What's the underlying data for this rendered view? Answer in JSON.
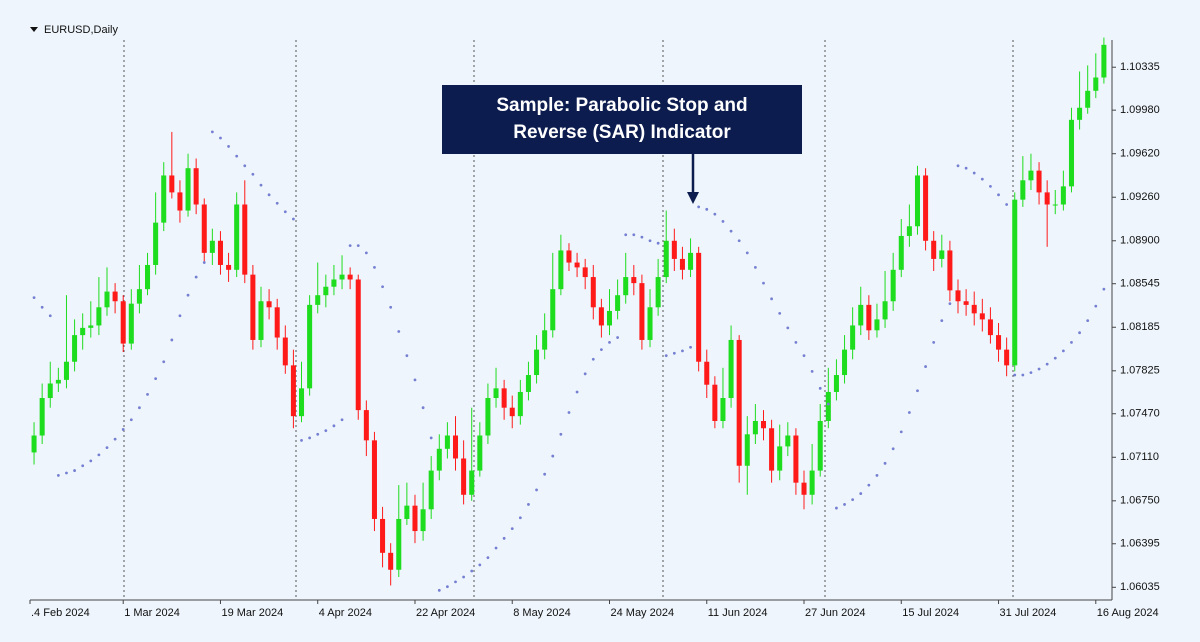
{
  "chart_data": {
    "type": "candlestick",
    "title": "EURUSD,Daily",
    "annotation": [
      "Sample: Parabolic Stop and",
      "Reverse (SAR) Indicator"
    ],
    "up_color": "#1edc1e",
    "down_color": "#ff1a1a",
    "open": [
      1.0715,
      1.0729,
      1.076,
      1.0772,
      1.0775,
      1.079,
      1.0812,
      1.0818,
      1.082,
      1.0835,
      1.0848,
      1.084,
      1.0805,
      1.0838,
      1.085,
      1.087,
      1.0905,
      1.0944,
      1.093,
      1.0915,
      1.095,
      1.092,
      1.088,
      1.089,
      1.087,
      1.0866,
      1.092,
      1.0862,
      1.0808,
      1.084,
      1.0835,
      1.081,
      1.0787,
      1.0745,
      1.0768,
      1.0837,
      1.0845,
      1.0852,
      1.0858,
      1.0862,
      1.0858,
      1.075,
      1.0725,
      1.066,
      1.0632,
      1.0618,
      1.066,
      1.0671,
      1.065,
      1.0668,
      1.07,
      1.0718,
      1.0729,
      1.071,
      1.068,
      1.07,
      1.0729,
      1.076,
      1.0768,
      1.0752,
      1.0745,
      1.0765,
      1.0779,
      1.08,
      1.0816,
      1.085,
      1.0882,
      1.0872,
      1.0868,
      1.086,
      1.0835,
      1.082,
      1.0832,
      1.0845,
      1.086,
      1.0855,
      1.0808,
      1.0835,
      1.086,
      1.089,
      1.0875,
      1.0866,
      1.088,
      1.079,
      1.0771,
      1.0741,
      1.076,
      1.0808,
      1.0704,
      1.073,
      1.0741,
      1.0735,
      1.07,
      1.072,
      1.0729,
      1.069,
      1.068,
      1.07,
      1.0741,
      1.0765,
      1.0779,
      1.08,
      1.082,
      1.0837,
      1.0816,
      1.0825,
      1.084,
      1.0866,
      1.0894,
      1.0902,
      1.0944,
      1.089,
      1.0875,
      1.0882,
      1.0849,
      1.084,
      1.0837,
      1.083,
      1.0825,
      1.0812,
      1.08,
      1.0787,
      1.0924,
      1.094,
      1.0948,
      1.093,
      1.092,
      1.092,
      1.0935,
      1.099,
      1.1,
      1.1014,
      1.1025
    ],
    "high": [
      1.074,
      1.0772,
      1.079,
      1.0785,
      1.0845,
      1.0825,
      1.083,
      1.084,
      1.086,
      1.0868,
      1.0855,
      1.0845,
      1.085,
      1.087,
      1.088,
      1.093,
      1.0955,
      1.098,
      1.094,
      1.0962,
      1.0958,
      1.0925,
      1.09,
      1.0898,
      1.088,
      1.093,
      1.094,
      1.087,
      1.0852,
      1.085,
      1.0842,
      1.082,
      1.08,
      1.079,
      1.0845,
      1.0872,
      1.0862,
      1.087,
      1.0878,
      1.0868,
      1.0862,
      1.0758,
      1.0732,
      1.067,
      1.064,
      1.0688,
      1.069,
      1.068,
      1.069,
      1.0712,
      1.073,
      1.074,
      1.0745,
      1.0725,
      1.0752,
      1.074,
      1.0772,
      1.0785,
      1.0775,
      1.0762,
      1.0775,
      1.079,
      1.0812,
      1.083,
      1.088,
      1.0895,
      1.0888,
      1.088,
      1.0875,
      1.087,
      1.0842,
      1.085,
      1.0858,
      1.088,
      1.087,
      1.0862,
      1.085,
      1.0875,
      1.0915,
      1.09,
      1.0885,
      1.0892,
      1.0885,
      1.08,
      1.0778,
      1.0785,
      1.082,
      1.0812,
      1.0745,
      1.0755,
      1.075,
      1.0742,
      1.0738,
      1.074,
      1.0735,
      1.07,
      1.0722,
      1.0755,
      1.0785,
      1.0792,
      1.0812,
      1.0835,
      1.0852,
      1.0845,
      1.0838,
      1.0865,
      1.088,
      1.0908,
      1.092,
      1.0952,
      1.095,
      1.0898,
      1.0895,
      1.089,
      1.0858,
      1.085,
      1.0848,
      1.0842,
      1.0835,
      1.0822,
      1.081,
      1.093,
      1.096,
      1.0962,
      1.0955,
      1.094,
      1.0932,
      1.0948,
      1.1,
      1.103,
      1.1035,
      1.1045,
      1.1058
    ],
    "low": [
      1.0705,
      1.0722,
      1.0752,
      1.0765,
      1.0768,
      1.0782,
      1.08,
      1.081,
      1.0812,
      1.0828,
      1.083,
      1.0798,
      1.08,
      1.083,
      1.0845,
      1.0862,
      1.0898,
      1.0925,
      1.0905,
      1.091,
      1.0912,
      1.0872,
      1.087,
      1.0862,
      1.0856,
      1.086,
      1.0855,
      1.08,
      1.0802,
      1.0825,
      1.08,
      1.078,
      1.0735,
      1.074,
      1.0762,
      1.083,
      1.0835,
      1.0845,
      1.085,
      1.085,
      1.0742,
      1.0712,
      1.065,
      1.062,
      1.0605,
      1.0612,
      1.0655,
      1.064,
      1.0642,
      1.066,
      1.0692,
      1.071,
      1.07,
      1.0672,
      1.0675,
      1.0695,
      1.0722,
      1.0752,
      1.0742,
      1.0735,
      1.0738,
      1.0758,
      1.0772,
      1.0792,
      1.081,
      1.0845,
      1.0865,
      1.086,
      1.085,
      1.0825,
      1.081,
      1.0812,
      1.0825,
      1.0838,
      1.0845,
      1.08,
      1.0802,
      1.0828,
      1.0855,
      1.0865,
      1.0858,
      1.086,
      1.0782,
      1.076,
      1.0735,
      1.0735,
      1.0752,
      1.069,
      1.068,
      1.0722,
      1.0725,
      1.069,
      1.0692,
      1.0712,
      1.068,
      1.0668,
      1.0672,
      1.0695,
      1.0735,
      1.0758,
      1.0772,
      1.0792,
      1.0812,
      1.0808,
      1.081,
      1.0818,
      1.0832,
      1.086,
      1.0885,
      1.0895,
      1.0882,
      1.0865,
      1.0868,
      1.084,
      1.083,
      1.0828,
      1.082,
      1.0815,
      1.0805,
      1.079,
      1.0778,
      1.0782,
      1.0918,
      1.0932,
      1.092,
      1.0885,
      1.0912,
      1.0915,
      1.093,
      1.0982,
      1.0995,
      1.1008,
      1.102
    ],
    "close": [
      1.0729,
      1.076,
      1.0772,
      1.0775,
      1.079,
      1.0812,
      1.0818,
      1.082,
      1.0835,
      1.0848,
      1.084,
      1.0805,
      1.0838,
      1.085,
      1.087,
      1.0905,
      1.0944,
      1.093,
      1.0915,
      1.095,
      1.092,
      1.088,
      1.089,
      1.087,
      1.0866,
      1.092,
      1.0862,
      1.0808,
      1.084,
      1.0835,
      1.081,
      1.0787,
      1.0745,
      1.0768,
      1.0837,
      1.0845,
      1.0852,
      1.0858,
      1.0862,
      1.0858,
      1.075,
      1.0725,
      1.066,
      1.0632,
      1.0618,
      1.066,
      1.0671,
      1.065,
      1.0668,
      1.07,
      1.0718,
      1.0729,
      1.071,
      1.068,
      1.07,
      1.0729,
      1.076,
      1.0768,
      1.0752,
      1.0745,
      1.0765,
      1.0779,
      1.08,
      1.0816,
      1.085,
      1.0882,
      1.0872,
      1.0868,
      1.086,
      1.0835,
      1.082,
      1.0832,
      1.0845,
      1.086,
      1.0855,
      1.0808,
      1.0835,
      1.086,
      1.089,
      1.0875,
      1.0866,
      1.088,
      1.079,
      1.0771,
      1.0741,
      1.076,
      1.0808,
      1.0704,
      1.073,
      1.0741,
      1.0735,
      1.07,
      1.072,
      1.0729,
      1.069,
      1.068,
      1.07,
      1.0741,
      1.0765,
      1.0779,
      1.08,
      1.082,
      1.0837,
      1.0816,
      1.0825,
      1.084,
      1.0866,
      1.0894,
      1.0902,
      1.0944,
      1.089,
      1.0875,
      1.0882,
      1.0849,
      1.084,
      1.0837,
      1.083,
      1.0825,
      1.0812,
      1.08,
      1.0787,
      1.0924,
      1.094,
      1.0948,
      1.093,
      1.092,
      1.092,
      1.0935,
      1.099,
      1.1,
      1.1014,
      1.1025,
      1.1052
    ],
    "sar": {
      "color": "#7680d2",
      "values": [
        1.0843,
        1.0835,
        1.0828,
        1.0696,
        1.0698,
        1.07,
        1.0704,
        1.0708,
        1.0713,
        1.0719,
        1.0726,
        1.0734,
        1.0742,
        1.0752,
        1.0763,
        1.0776,
        1.079,
        1.0808,
        1.0828,
        1.0845,
        1.086,
        1.0872,
        1.098,
        1.0975,
        1.0968,
        1.096,
        1.0952,
        1.0945,
        1.0936,
        1.0928,
        1.0921,
        1.0914,
        1.0908,
        1.0725,
        1.0727,
        1.073,
        1.0733,
        1.0737,
        1.0742,
        1.0886,
        1.0886,
        1.088,
        1.0868,
        1.0852,
        1.0835,
        1.0815,
        1.0795,
        1.0775,
        1.0752,
        1.0727,
        1.0601,
        1.0604,
        1.0608,
        1.0612,
        1.0617,
        1.0622,
        1.0628,
        1.0636,
        1.0644,
        1.0652,
        1.0661,
        1.0672,
        1.0684,
        1.0697,
        1.0712,
        1.073,
        1.0748,
        1.0765,
        1.078,
        1.0792,
        1.08,
        1.0806,
        1.081,
        1.0895,
        1.0895,
        1.0893,
        1.089,
        1.0888,
        1.0795,
        1.0797,
        1.0799,
        1.0802,
        1.0918,
        1.0916,
        1.0912,
        1.0906,
        1.0898,
        1.089,
        1.088,
        1.0868,
        1.0855,
        1.0842,
        1.083,
        1.0818,
        1.0806,
        1.0795,
        1.0782,
        1.0768,
        1.0755,
        1.0669,
        1.0672,
        1.0676,
        1.0681,
        1.0688,
        1.0696,
        1.0706,
        1.0718,
        1.0732,
        1.0748,
        1.0766,
        1.0786,
        1.0806,
        1.0824,
        1.0838,
        1.0952,
        1.095,
        1.0946,
        1.0941,
        1.0935,
        1.0928,
        1.092,
        1.0779,
        1.0779,
        1.0781,
        1.0784,
        1.0788,
        1.0793,
        1.0799,
        1.0806,
        1.0814,
        1.0824,
        1.0836,
        1.085
      ]
    },
    "xlim": [
      -0.5,
      133
    ],
    "xticks": [
      {
        "value": -0.5,
        "label": ".4 Feb 2024"
      },
      {
        "value": 11,
        "label": "1 Mar 2024"
      },
      {
        "value": 23,
        "label": "19 Mar 2024"
      },
      {
        "value": 35,
        "label": "4 Apr 2024"
      },
      {
        "value": 47,
        "label": "22 Apr 2024"
      },
      {
        "value": 59,
        "label": "8 May 2024"
      },
      {
        "value": 71,
        "label": "24 May 2024"
      },
      {
        "value": 83,
        "label": "11 Jun 2024"
      },
      {
        "value": 95,
        "label": "27 Jun 2024"
      },
      {
        "value": 107,
        "label": "15 Jul 2024"
      },
      {
        "value": 119,
        "label": "31 Jul 2024"
      },
      {
        "value": 131,
        "label": "16 Aug 2024"
      }
    ],
    "ylim": [
      1.0593,
      1.1056
    ],
    "yticks": [
      1.10335,
      {
        "value": 1.0998,
        "label": "1.09980"
      },
      {
        "value": 1.0962,
        "label": "1.09620"
      },
      {
        "value": 1.0926,
        "label": "1.09260"
      },
      {
        "value": 1.089,
        "label": "1.08900"
      },
      1.08545,
      1.08185,
      1.07825,
      {
        "value": 1.0747,
        "label": "1.07470"
      },
      {
        "value": 1.0711,
        "label": "1.07110"
      },
      {
        "value": 1.0675,
        "label": "1.06750"
      },
      1.06395,
      1.06035
    ]
  }
}
